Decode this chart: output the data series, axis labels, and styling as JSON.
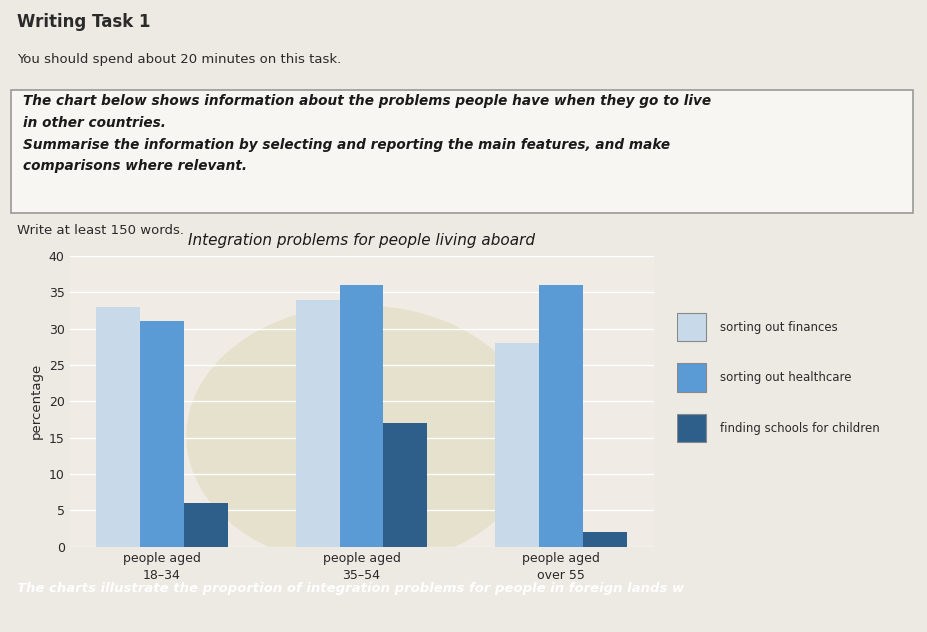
{
  "title": "Integration problems for people living aboard",
  "ylabel": "percentage",
  "ylim": [
    0,
    40
  ],
  "yticks": [
    0,
    5,
    10,
    15,
    20,
    25,
    30,
    35,
    40
  ],
  "groups": [
    "people aged\n18–34",
    "people aged\n35–54",
    "people aged\nover 55"
  ],
  "series": {
    "sorting out finances": {
      "values": [
        33,
        34,
        28
      ],
      "color": "#c8daea"
    },
    "sorting out healthcare": {
      "values": [
        31,
        36,
        36
      ],
      "color": "#5b9bd5"
    },
    "finding schools for children": {
      "values": [
        6,
        17,
        2
      ],
      "color": "#2e5f8a"
    }
  },
  "bar_width": 0.22,
  "header_title": "Writing Task 1",
  "header_subtitle": "You should spend about 20 minutes on this task.",
  "box_text": "The chart below shows information about the problems people have when they go to live\nin other countries.\nSummarise the information by selecting and reporting the main features, and make\ncomparisons where relevant.",
  "footer_text": "The charts illustrate the proportion of integration problems for people in foreign lands w",
  "write_words": "Write at least 150 words.",
  "bg_color": "#ede9e3",
  "chart_bg": "#f0ece5",
  "watermark_color": "#ddd8b8",
  "footer_bg": "#2a2a2a",
  "footer_text_color": "#ffffff"
}
